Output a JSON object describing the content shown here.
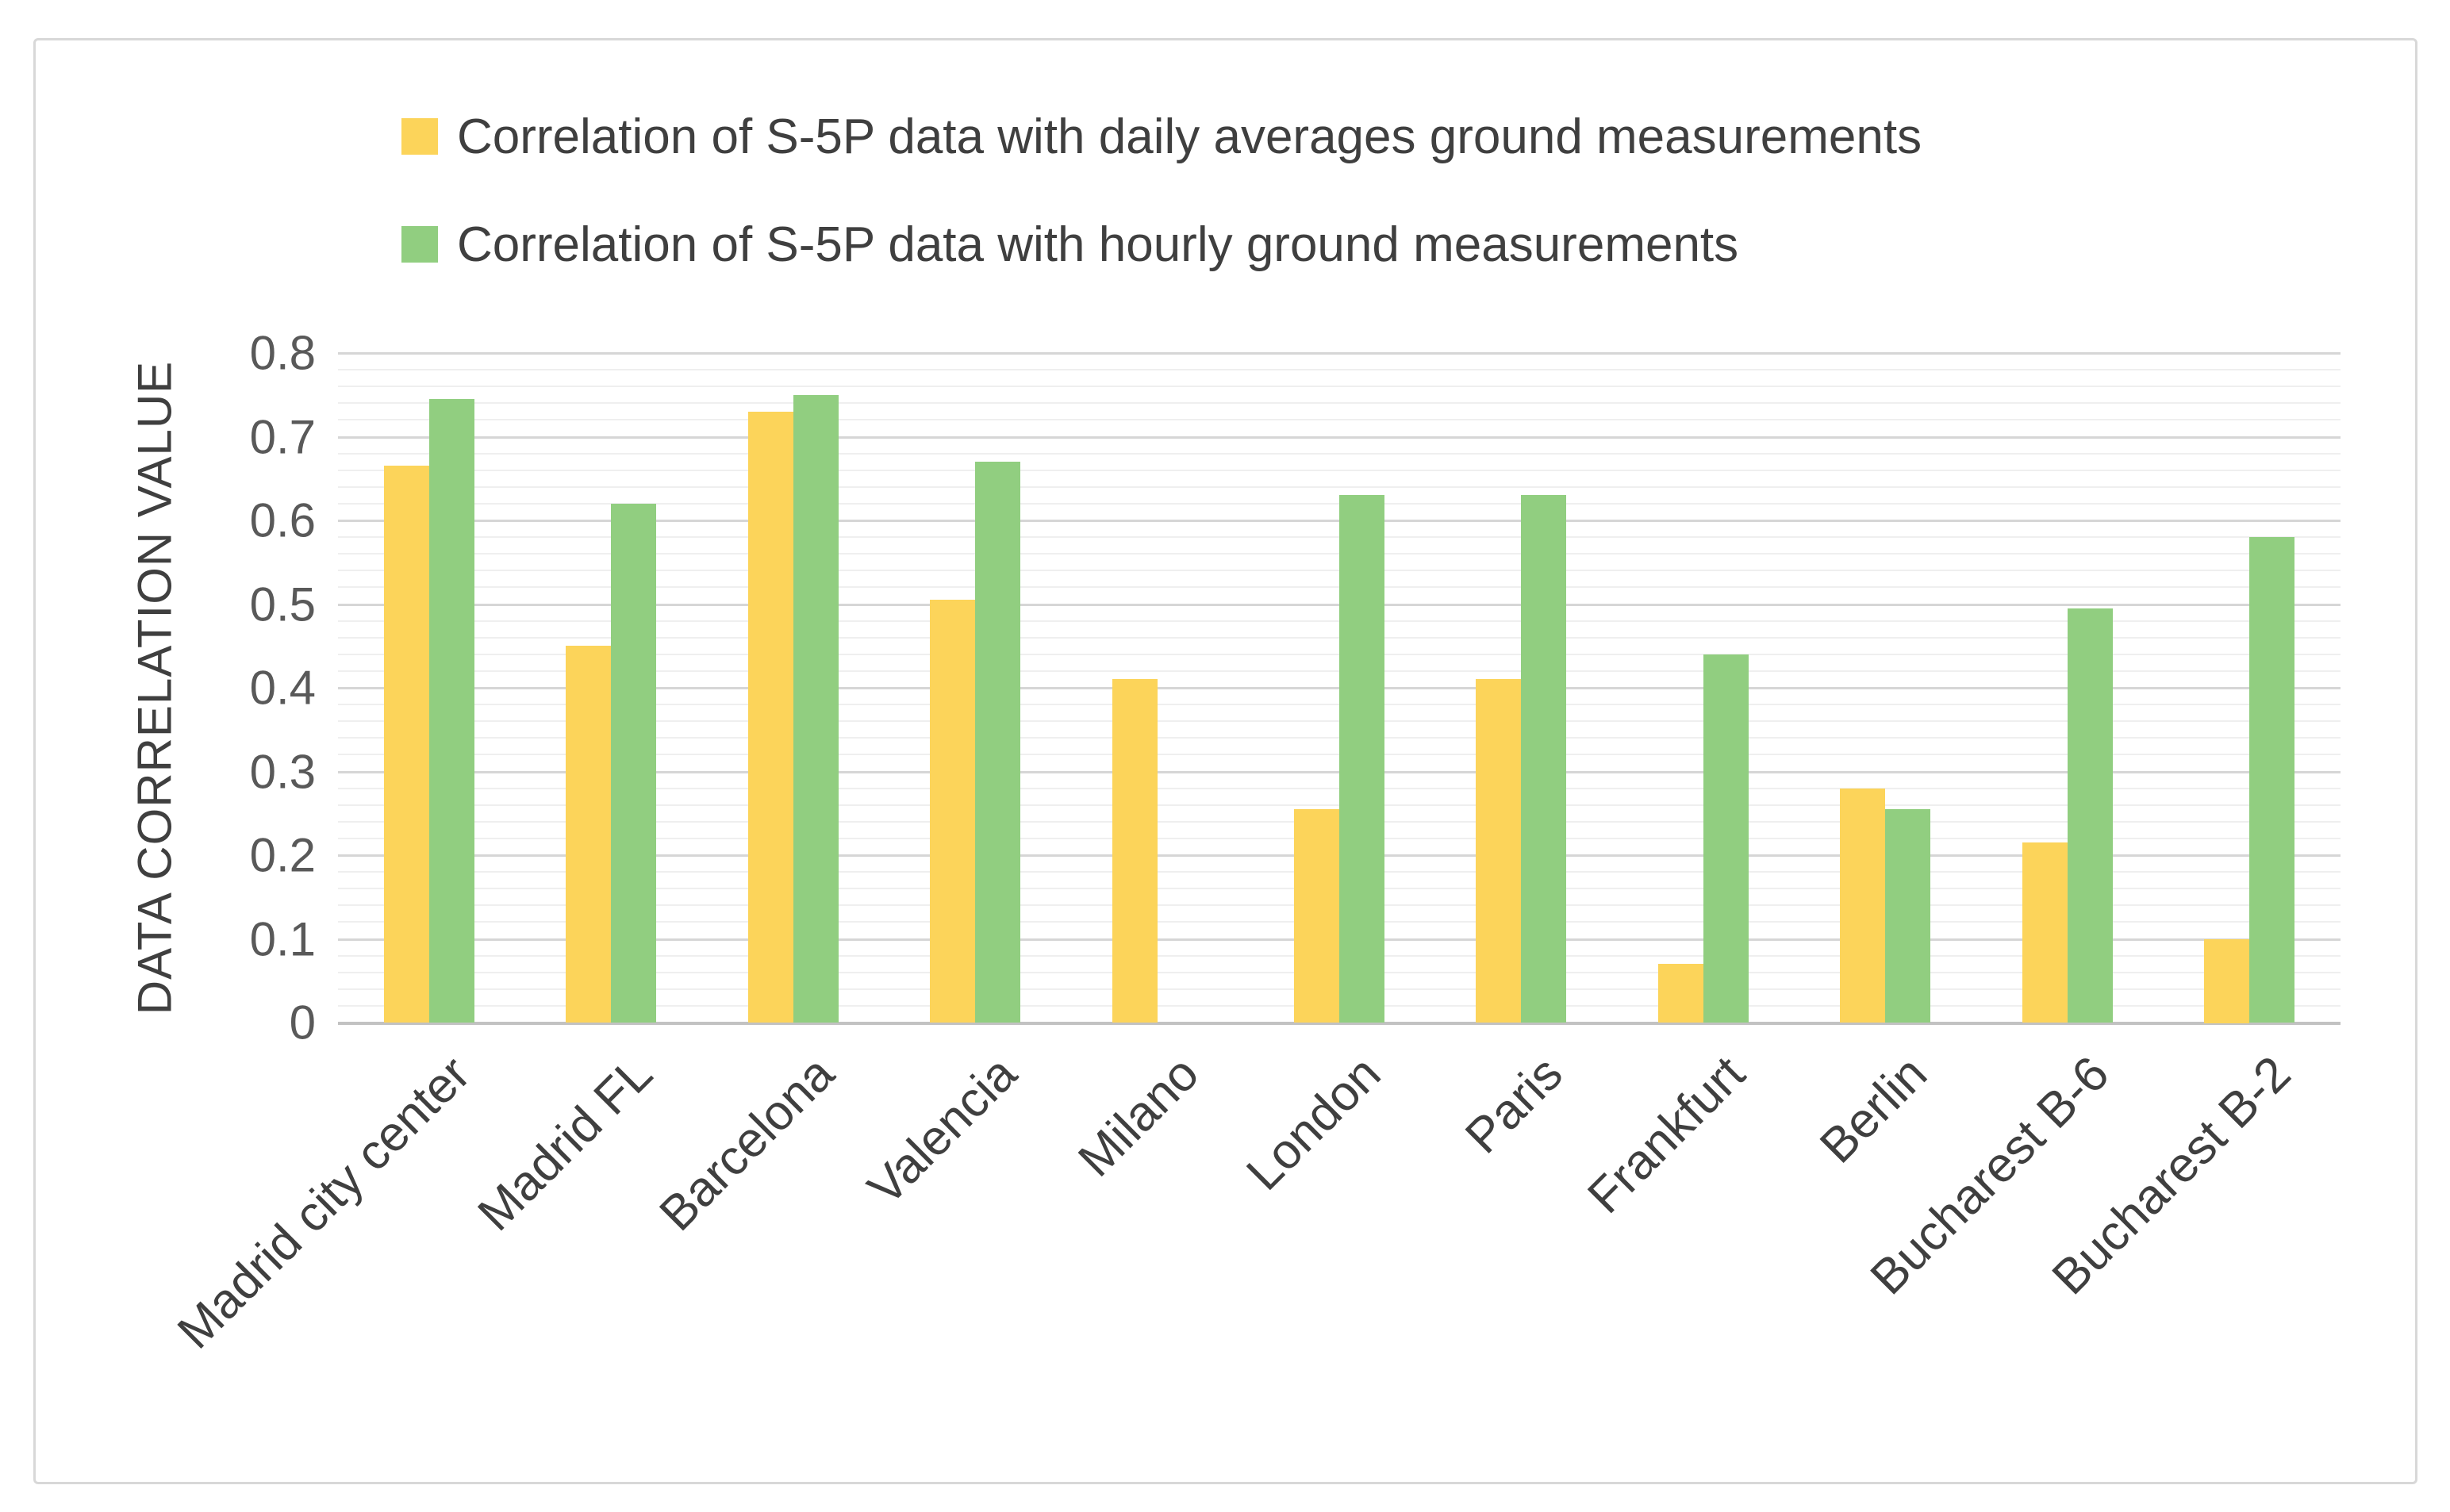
{
  "legend": {
    "items": [
      {
        "id": "daily",
        "label": "Correlation of S-5P data with daily averages ground measurements",
        "color": "#fcd45a"
      },
      {
        "id": "hourly",
        "label": "Correlation of S-5P data with hourly ground measurements",
        "color": "#91ce80"
      }
    ]
  },
  "chart_data": {
    "type": "bar",
    "title": "",
    "categories": [
      "Madrid city center",
      "Madrid FL",
      "Barcelona",
      "Valencia",
      "Milano",
      "London",
      "Paris",
      "Frankfurt",
      "Berlin",
      "Bucharest B-6",
      "Bucharest B-2"
    ],
    "series": [
      {
        "name": "Correlation of S-5P data with daily averages ground measurements",
        "color": "#fcd45a",
        "values": [
          0.665,
          0.45,
          0.73,
          0.505,
          0.41,
          0.255,
          0.41,
          0.07,
          0.28,
          0.215,
          0.1
        ]
      },
      {
        "name": "Correlation of S-5P data with hourly ground measurements",
        "color": "#91ce80",
        "values": [
          0.745,
          0.62,
          0.75,
          0.67,
          null,
          0.63,
          0.63,
          0.44,
          0.255,
          0.495,
          0.58
        ]
      }
    ],
    "xlabel": "",
    "ylabel": "DATA CORRELATION VALUE",
    "ylim": [
      0,
      0.8
    ],
    "yticks": [
      "0",
      "0.1",
      "0.2",
      "0.3",
      "0.4",
      "0.5",
      "0.6",
      "0.7",
      "0.8"
    ],
    "grid": {
      "major_step": 0.1,
      "minor_step": 0.02,
      "vertical": false
    },
    "legend_position": "top-left",
    "bar_orientation": "vertical"
  },
  "colors": {
    "grid_major": "#d6d6d6",
    "grid_minor": "#efefef",
    "axis_baseline": "#c2c2c2",
    "frame_border": "#d8d8d8",
    "tick_text": "#595959",
    "label_text": "#3f3f3f"
  }
}
